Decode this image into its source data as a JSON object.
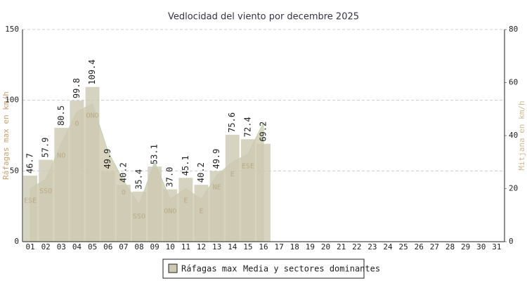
{
  "chart_data": {
    "type": "bar",
    "title": "Vedlocidad del viento por decembre 2025",
    "y_label": "Ráfagas max en km/h",
    "y2_label": "Mitjana en km/h",
    "categories": [
      "01",
      "02",
      "03",
      "04",
      "05",
      "06",
      "07",
      "08",
      "09",
      "10",
      "11",
      "12",
      "13",
      "14",
      "15",
      "16",
      "17",
      "18",
      "19",
      "20",
      "21",
      "22",
      "23",
      "24",
      "25",
      "26",
      "27",
      "28",
      "29",
      "30",
      "31"
    ],
    "series": [
      {
        "name": "Ráfagas max",
        "color": "#cdc8b2",
        "values": [
          46.7,
          57.9,
          80.5,
          99.8,
          109.4,
          49.9,
          40.2,
          35.4,
          53.1,
          37.0,
          45.1,
          40.2,
          49.9,
          75.6,
          72.4,
          69.2,
          null,
          null,
          null,
          null,
          null,
          null,
          null,
          null,
          null,
          null,
          null,
          null,
          null,
          null,
          null
        ],
        "value_labels": [
          "46.7",
          "57.9",
          "80.5",
          "99.8",
          "109.4",
          "49.9",
          "40.2",
          "35.4",
          "53.1",
          "37.0",
          "45.1",
          "40.2",
          "49.9",
          "75.6",
          "72.4",
          "69.2",
          null,
          null,
          null,
          null,
          null,
          null,
          null,
          null,
          null,
          null,
          null,
          null,
          null,
          null,
          null
        ]
      },
      {
        "name": "Media y sectores dominantes",
        "color": "#c9c2a2",
        "axis": "y2",
        "values": [
          20,
          23.6,
          37,
          49,
          52,
          34,
          23,
          14,
          30,
          16,
          20,
          16,
          25,
          30,
          33,
          45,
          null,
          null,
          null,
          null,
          null,
          null,
          null,
          null,
          null,
          null,
          null,
          null,
          null,
          null,
          null
        ],
        "sectors": [
          "ESE",
          "SSO",
          "NO",
          "O",
          "ONO",
          null,
          "O",
          "SSO",
          null,
          "ONO",
          "E",
          "E",
          "NE",
          "E",
          "ESE",
          null,
          null,
          null,
          null,
          null,
          null,
          null,
          null,
          null,
          null,
          null,
          null,
          null,
          null,
          null,
          null
        ]
      }
    ],
    "ylim": [
      0,
      150
    ],
    "yticks": [
      0,
      50,
      100,
      150
    ],
    "y2lim": [
      0,
      80
    ],
    "y2ticks": [
      0,
      20,
      40,
      60,
      80
    ],
    "grid": true
  }
}
